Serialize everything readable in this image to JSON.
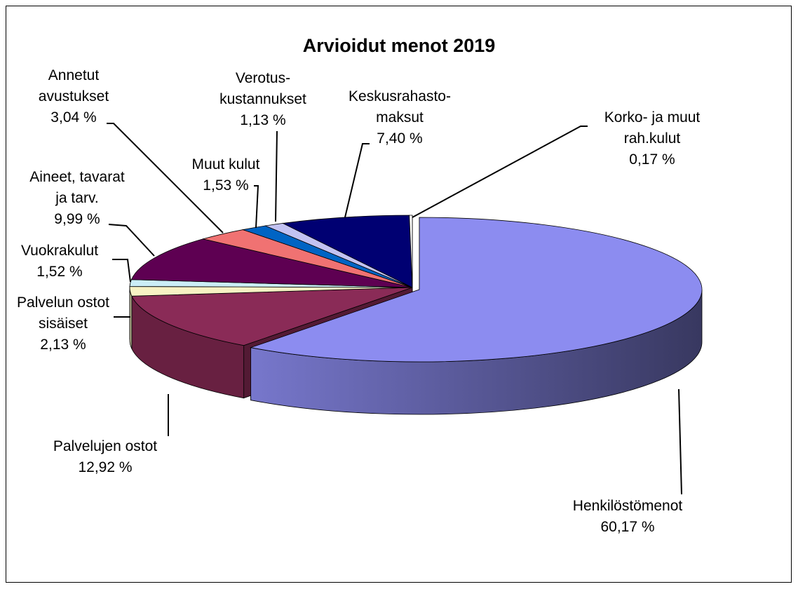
{
  "chart_data": {
    "type": "pie",
    "title": "Arvioidut menot 2019",
    "categories": [
      "Henkilöstömenot",
      "Palvelujen ostot",
      "Palvelun ostot\nsisäiset",
      "Vuokrakulut",
      "Aineet, tavarat\nja tarv.",
      "Annetut\navustukset",
      "Muut kulut",
      "Verotus-\nkustannukset",
      "Keskusrahasto-\nmaksut",
      "Korko- ja muut\nrah.kulut"
    ],
    "values": [
      60.17,
      12.92,
      2.13,
      1.52,
      9.99,
      3.04,
      1.53,
      1.13,
      7.4,
      0.17
    ],
    "value_labels": [
      "60,17 %",
      "12,92 %",
      "2,13 %",
      "1,52 %",
      "9,99 %",
      "3,04 %",
      "1,53 %",
      "1,13 %",
      "7,40 %",
      "0,17 %"
    ],
    "colors": [
      "#8c8cf0",
      "#8a2b57",
      "#f7f2c4",
      "#cbeef7",
      "#5e0052",
      "#f07272",
      "#0064c4",
      "#c2c2f2",
      "#000072",
      "#ffffff"
    ]
  }
}
